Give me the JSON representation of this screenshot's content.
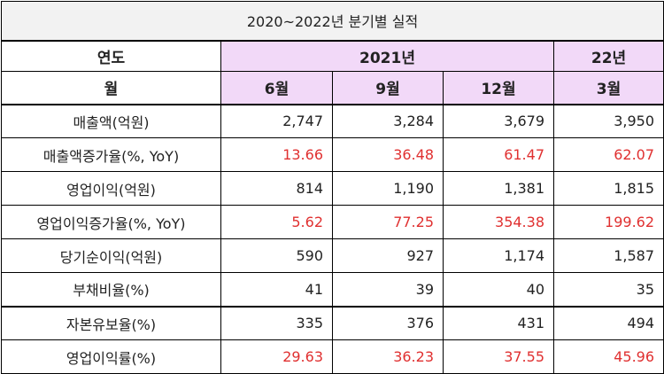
{
  "title": "2020~2022년 분기별 실적",
  "header": {
    "year_label": "연도",
    "year_2021": "2021년",
    "year_22": "22년",
    "month_label": "월",
    "months": [
      "6월",
      "9월",
      "12월",
      "3월"
    ]
  },
  "rows": [
    {
      "label": "매출액(억원)",
      "values": [
        "2,747",
        "3,284",
        "3,679",
        "3,950"
      ],
      "highlight": false
    },
    {
      "label": "매출액증가율(%, YoY)",
      "values": [
        "13.66",
        "36.48",
        "61.47",
        "62.07"
      ],
      "highlight": true
    },
    {
      "label": "영업이익(억원)",
      "values": [
        "814",
        "1,190",
        "1,381",
        "1,815"
      ],
      "highlight": false
    },
    {
      "label": "영업이익증가율(%, YoY)",
      "values": [
        "5.62",
        "77.25",
        "354.38",
        "199.62"
      ],
      "highlight": true
    },
    {
      "label": "당기순이익(억원)",
      "values": [
        "590",
        "927",
        "1,174",
        "1,587"
      ],
      "highlight": false
    },
    {
      "label": "부채비율(%)",
      "values": [
        "41",
        "39",
        "40",
        "35"
      ],
      "highlight": false
    },
    {
      "label": "자본유보율(%)",
      "values": [
        "335",
        "376",
        "431",
        "494"
      ],
      "highlight": false
    },
    {
      "label": "영업이익률(%)",
      "values": [
        "29.63",
        "36.23",
        "37.55",
        "45.96"
      ],
      "highlight": true
    }
  ],
  "colors": {
    "header_pink": "#f2d9f8",
    "title_gray": "#f2f2f2",
    "highlight_red": "#e03030"
  }
}
